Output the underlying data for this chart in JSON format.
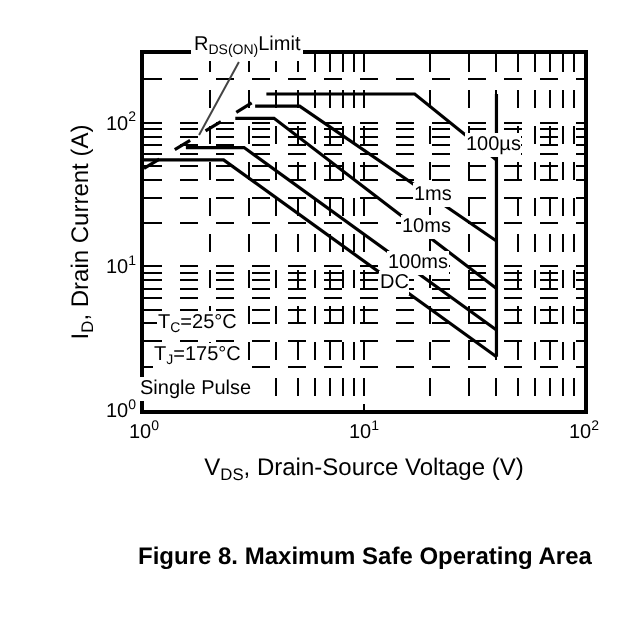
{
  "chart_data": {
    "type": "line",
    "title": "Figure 8. Maximum Safe Operating Area",
    "xlabel": "V$_{DS}$, Drain-Source Voltage (V)",
    "ylabel": "I$_{D}$, Drain Current (A)",
    "log": "xy",
    "xlim": [
      1,
      100
    ],
    "ylim": [
      1,
      300
    ],
    "xticks": [
      {
        "value": 1,
        "label": "10$^{0}$"
      },
      {
        "value": 10,
        "label": "10$^{1}$"
      },
      {
        "value": 100,
        "label": "10$^{2}$"
      }
    ],
    "yticks": [
      {
        "value": 1,
        "label": "10$^{0}$"
      },
      {
        "value": 10,
        "label": "10$^{1}$"
      },
      {
        "value": 100,
        "label": "10$^{2}$"
      }
    ],
    "grid": true,
    "legend": false,
    "marker": "none",
    "series": [
      {
        "name": "R$_{DS(ON)}$Limit",
        "color": "#000000",
        "line_style": "dashed",
        "x": [
          1,
          3.6
        ],
        "values": [
          48,
          158
        ]
      },
      {
        "name": "100µs",
        "color": "#000000",
        "x": [
          3.6,
          17,
          40
        ],
        "values": [
          158,
          158,
          55
        ]
      },
      {
        "name": "1ms",
        "color": "#000000",
        "x": [
          3.2,
          5.1,
          40
        ],
        "values": [
          130,
          130,
          15
        ]
      },
      {
        "name": "10ms",
        "color": "#000000",
        "x": [
          2.6,
          3.9,
          40
        ],
        "values": [
          107,
          107,
          7
        ]
      },
      {
        "name": "100ms",
        "color": "#000000",
        "x": [
          1.55,
          2.85,
          40
        ],
        "values": [
          67,
          67,
          3.6
        ]
      },
      {
        "name": "DC",
        "color": "#000000",
        "x": [
          1,
          2.3,
          40
        ],
        "values": [
          55,
          55,
          2.35
        ]
      },
      {
        "color": "#000000",
        "x": [
          40,
          40
        ],
        "values": [
          158,
          2.35
        ]
      }
    ],
    "annotations": [
      "T$_{C}$=25°C",
      "T$_{J}$=175°C",
      "Single Pulse"
    ]
  }
}
